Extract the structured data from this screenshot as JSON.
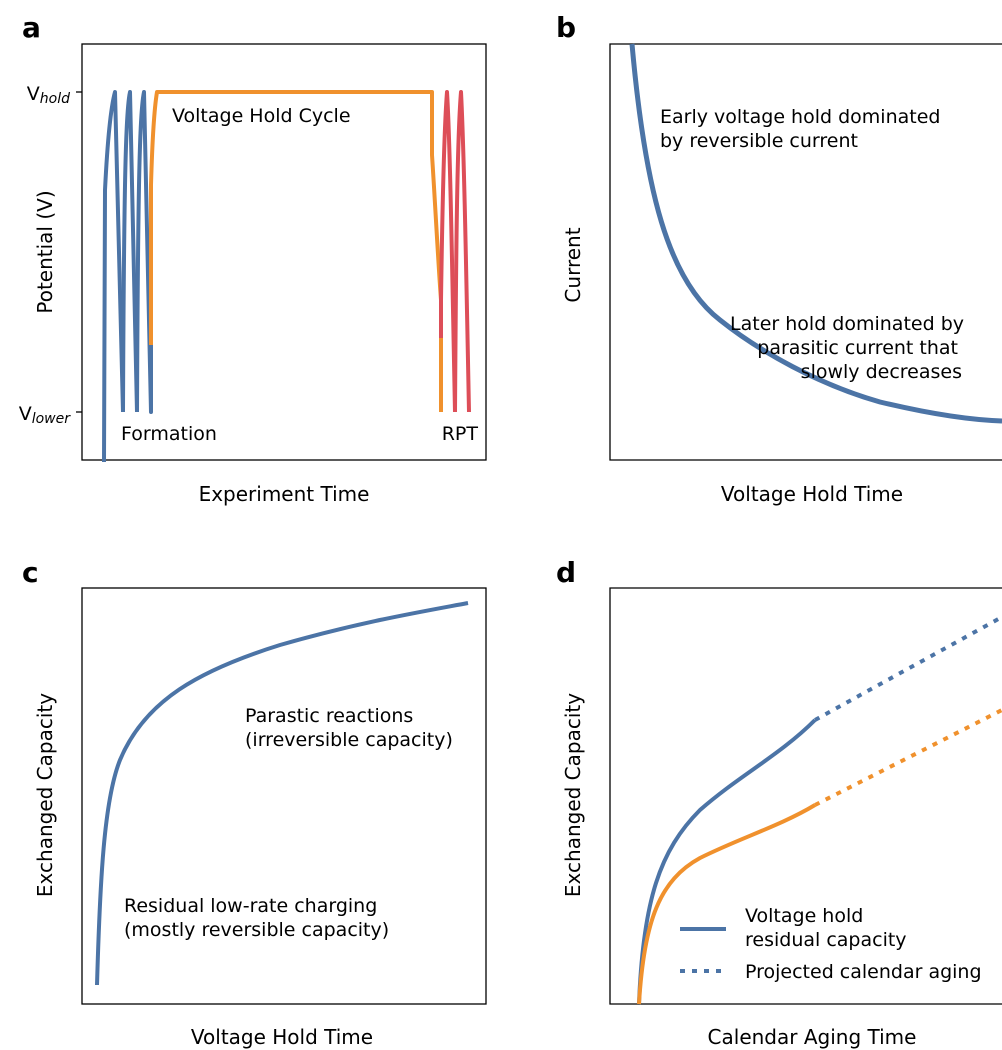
{
  "colors": {
    "blue": "#4c74a6",
    "orange": "#f0912d",
    "red": "#dd4e58",
    "axis": "#000000"
  },
  "chart_data": [
    {
      "panel": "a",
      "type": "line",
      "xlabel": "Experiment Time",
      "ylabel": "Potential (V)",
      "yticks": [
        {
          "base": "V",
          "sub": "hold"
        },
        {
          "base": "V",
          "sub": "lower"
        }
      ],
      "annotations": {
        "formation": "Formation",
        "hold": "Voltage Hold Cycle",
        "rpt": "RPT"
      },
      "series": [
        {
          "name": "Formation",
          "color": "blue"
        },
        {
          "name": "Voltage Hold Cycle",
          "color": "orange"
        },
        {
          "name": "RPT",
          "color": "red"
        }
      ]
    },
    {
      "panel": "b",
      "type": "line",
      "xlabel": "Voltage Hold Time",
      "ylabel": "Current",
      "annotations": {
        "early_line1": "Early voltage hold dominated",
        "early_line2": "by reversible current",
        "later_line1": "Later hold dominated by",
        "later_line2": "parasitic current that",
        "later_line3": "slowly decreases"
      }
    },
    {
      "panel": "c",
      "type": "line",
      "xlabel": "Voltage Hold Time",
      "ylabel": "Exchanged Capacity",
      "annotations": {
        "upper_line1": "Parastic reactions",
        "upper_line2": "(irreversible capacity)",
        "lower_line1": "Residual low-rate charging",
        "lower_line2": "(mostly reversible capacity)"
      }
    },
    {
      "panel": "d",
      "type": "line",
      "xlabel": "Calendar Aging Time",
      "ylabel": "Exchanged Capacity",
      "legend": {
        "solid_line1": "Voltage hold",
        "solid_line2": "residual capacity",
        "dotted": "Projected calendar aging"
      },
      "series": [
        {
          "color": "blue",
          "style": "solid-then-dotted"
        },
        {
          "color": "orange",
          "style": "solid-then-dotted"
        }
      ]
    }
  ]
}
